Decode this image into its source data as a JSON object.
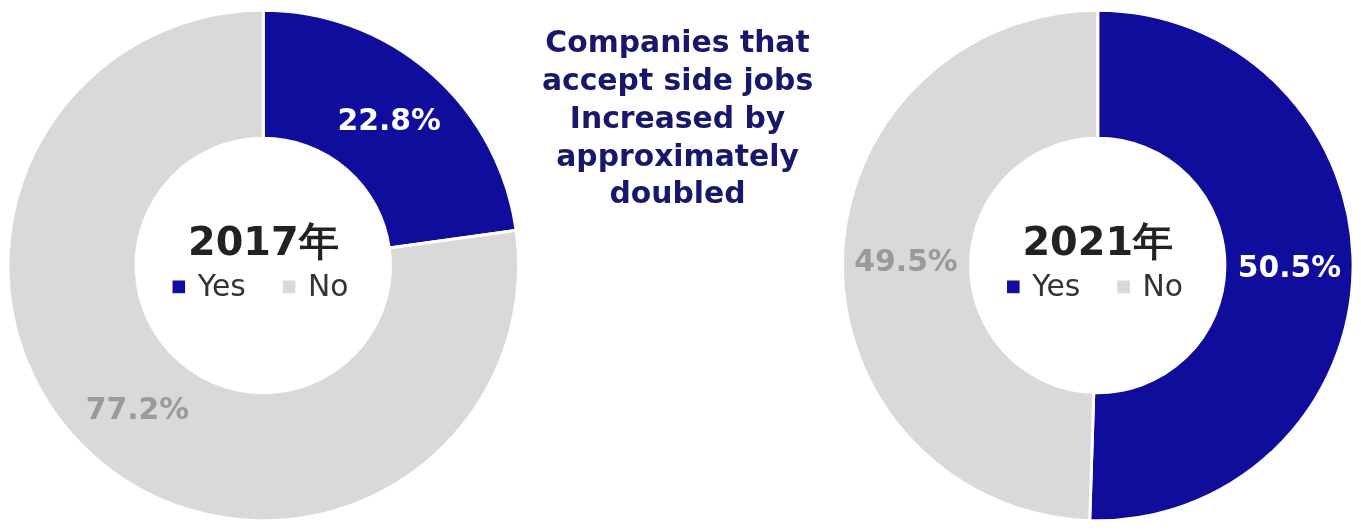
{
  "chart_data": [
    {
      "type": "donut",
      "title": "2017年",
      "categories": [
        "Yes",
        "No"
      ],
      "values": [
        22.8,
        77.2
      ],
      "colors": [
        "#100c9c",
        "#d9d9d9"
      ],
      "value_labels": [
        "22.8%",
        "77.2%"
      ],
      "legend": "center"
    },
    {
      "type": "other",
      "annotations": [
        "Companies that accept side jobs Increased by approximately doubled"
      ]
    },
    {
      "type": "donut",
      "title": "2021年",
      "categories": [
        "Yes",
        "No"
      ],
      "values": [
        50.5,
        49.5
      ],
      "colors": [
        "#100c9c",
        "#d9d9d9"
      ],
      "value_labels": [
        "50.5%",
        "49.5%"
      ],
      "legend": "center"
    }
  ]
}
